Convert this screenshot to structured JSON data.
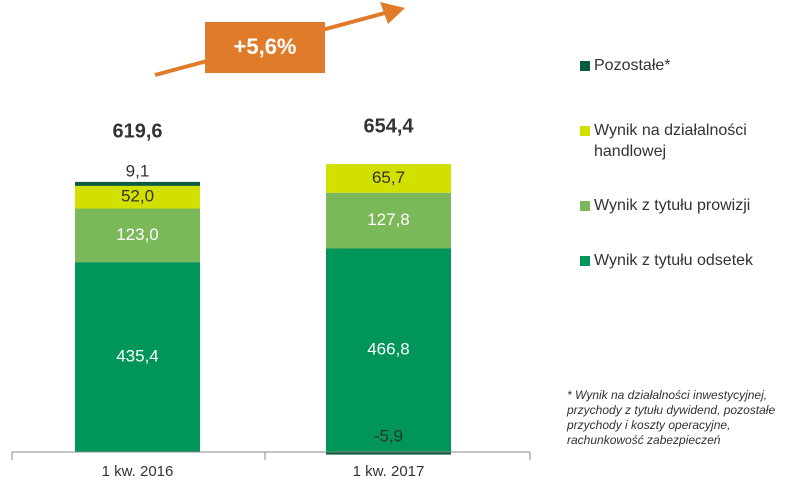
{
  "chart_data": {
    "type": "stacked_bar",
    "categories": [
      "1 kw. 2016",
      "1 kw. 2017"
    ],
    "series": [
      {
        "name": "Wynik z tytułu odsetek",
        "color": "#00965a",
        "values": [
          435.4,
          466.8
        ],
        "value_labels": [
          "435,4",
          "466,8"
        ]
      },
      {
        "name": "Wynik z tytułu prowizji",
        "color": "#7ab85a",
        "values": [
          123.0,
          127.8
        ],
        "value_labels": [
          "123,0",
          "127,8"
        ]
      },
      {
        "name": "Wynik na działalności handlowej",
        "color": "#d2e000",
        "values": [
          52.0,
          65.7
        ],
        "value_labels": [
          "52,0",
          "65,7"
        ]
      },
      {
        "name": "Pozostałe*",
        "color": "#0a5c3c",
        "values": [
          9.1,
          -5.9
        ],
        "value_labels": [
          "9,1",
          "-5,9"
        ]
      }
    ],
    "totals": {
      "values": [
        619.6,
        654.4
      ],
      "value_labels": [
        "619,6",
        "654,4"
      ]
    },
    "annotation": "+5,6%",
    "annotation_color": "#e07b2a",
    "footnote": "* Wynik na działalności inwestycyjnej, przychody z tytułu dywidend, pozostałe przychody i koszty operacyjne, rachunkowość zabezpieczeń"
  }
}
